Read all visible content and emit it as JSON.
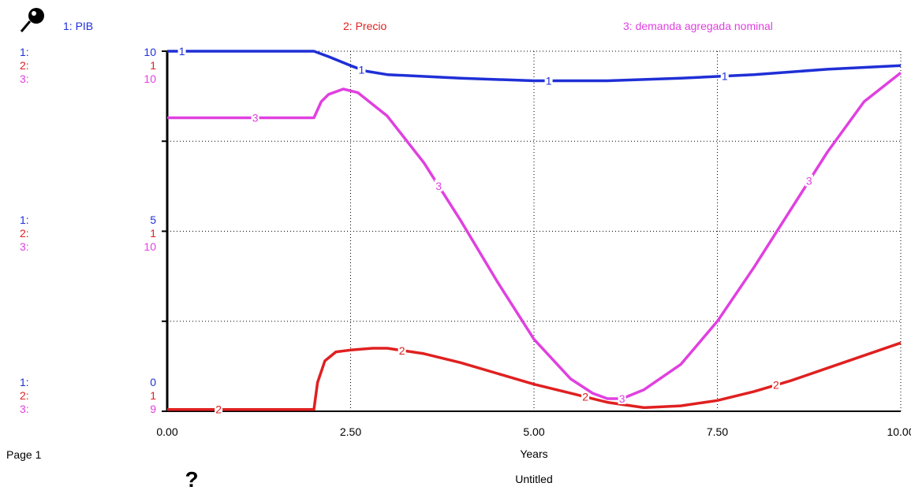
{
  "legend": [
    {
      "label": "1: PIB",
      "color": "#1f2fd6"
    },
    {
      "label": "2: Precio",
      "color": "#e02020"
    },
    {
      "label": "3: demanda agregada nominal",
      "color": "#e040e0"
    }
  ],
  "scales": {
    "top": [
      "1:",
      "2:",
      "3:",
      "10",
      "1",
      "10"
    ],
    "mid": [
      "1:",
      "2:",
      "3:",
      "5",
      "1",
      "10"
    ],
    "bottom": [
      "1:",
      "2:",
      "3:",
      "0",
      "1",
      "9"
    ]
  },
  "icons": {
    "pin": "pushpin-icon",
    "help": "question-mark-icon"
  },
  "page_label": "Page 1",
  "help_symbol": "?",
  "footer_title": "Untitled",
  "chart_data": {
    "type": "line",
    "title": "",
    "xlabel": "Years",
    "ylabel": "",
    "xlim": [
      0,
      10
    ],
    "x_ticks": [
      "0.00",
      "2.50",
      "5.00",
      "7.50",
      "10.00"
    ],
    "grid": "dotted",
    "legend_position": "top",
    "series": [
      {
        "name": "1: PIB",
        "marker": "1",
        "color": "#1f2fd6",
        "ylim": [
          0,
          10
        ],
        "x": [
          0,
          1,
          2,
          2.2,
          2.5,
          2.7,
          3,
          4,
          5,
          6,
          7,
          8,
          9,
          10
        ],
        "y": [
          10,
          10,
          10,
          9.85,
          9.6,
          9.45,
          9.35,
          9.25,
          9.18,
          9.18,
          9.25,
          9.35,
          9.5,
          9.6
        ],
        "label_x": [
          0.2,
          2.65,
          5.2,
          7.6
        ]
      },
      {
        "name": "2: Precio",
        "marker": "2",
        "color": "#e02020",
        "ylim": [
          0,
          1
        ],
        "x": [
          0,
          1,
          2,
          2.05,
          2.15,
          2.3,
          2.5,
          2.8,
          3.0,
          3.5,
          4,
          4.5,
          5,
          5.5,
          6,
          6.5,
          7,
          7.5,
          8,
          8.5,
          9,
          9.5,
          10
        ],
        "y": [
          0.005,
          0.005,
          0.005,
          0.08,
          0.14,
          0.165,
          0.17,
          0.175,
          0.175,
          0.16,
          0.135,
          0.105,
          0.075,
          0.05,
          0.025,
          0.01,
          0.015,
          0.03,
          0.055,
          0.085,
          0.12,
          0.155,
          0.19
        ],
        "label_x": [
          0.7,
          3.2,
          5.7,
          8.3
        ]
      },
      {
        "name": "3: demanda agregada nominal",
        "marker": "3",
        "color": "#e040e0",
        "ylim": [
          9,
          10
        ],
        "x": [
          0,
          1,
          1.8,
          2,
          2.1,
          2.2,
          2.4,
          2.6,
          3.0,
          3.5,
          4.0,
          4.5,
          5.0,
          5.5,
          5.8,
          6.0,
          6.2,
          6.5,
          7.0,
          7.5,
          8.0,
          8.5,
          9.0,
          9.5,
          10
        ],
        "y": [
          9.815,
          9.815,
          9.815,
          9.815,
          9.86,
          9.88,
          9.895,
          9.885,
          9.82,
          9.69,
          9.53,
          9.36,
          9.2,
          9.09,
          9.05,
          9.035,
          9.035,
          9.06,
          9.13,
          9.25,
          9.4,
          9.56,
          9.72,
          9.86,
          9.94
        ],
        "label_x": [
          1.2,
          3.7,
          6.2,
          8.75
        ]
      }
    ]
  }
}
